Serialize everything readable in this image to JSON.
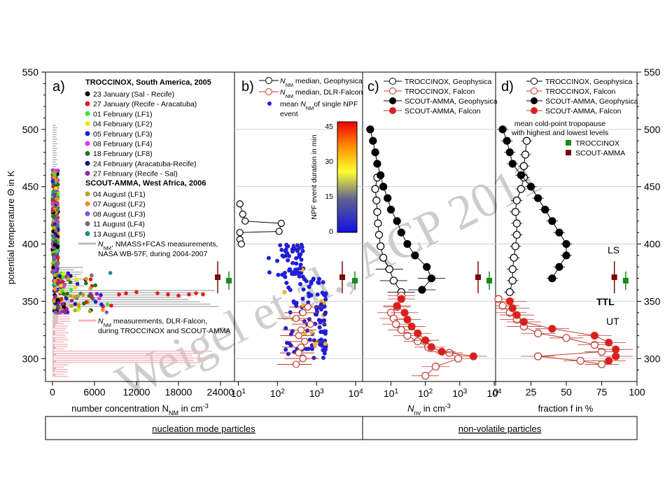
{
  "watermark": "Weigel et al., ACP 2011",
  "y_axis": {
    "label": "potential temperature Θ in K",
    "range": [
      280,
      550
    ],
    "ticks": [
      300,
      350,
      400,
      450,
      500,
      550
    ]
  },
  "footer": {
    "left": "nucleation mode particles",
    "right": "non-volatile particles"
  },
  "panels": {
    "a": {
      "letter": "a)",
      "xlabel": "number concentration  N",
      "xlabel_sub": "NM",
      "xlabel_unit": "in cm",
      "xlabel_sup": "-3",
      "xticks": [
        "0",
        "6000",
        "12000",
        "18000",
        "24000"
      ],
      "xrange": [
        -1000,
        26000
      ],
      "group1_title": "TROCCINOX, South America, 2005",
      "group1": [
        {
          "label": "23 January (Sal - Recife)",
          "color": "#000000"
        },
        {
          "label": "27 January (Recife - Aracatuba)",
          "color": "#e41a1c"
        },
        {
          "label": "01 February (LF1)",
          "color": "#39e639"
        },
        {
          "label": "04 February (LF2)",
          "color": "#e8e800"
        },
        {
          "label": "05 February (LF3)",
          "color": "#1f1fd6"
        },
        {
          "label": "08 February (LF4)",
          "color": "#e633e6"
        },
        {
          "label": "18 February (LF8)",
          "color": "#1a7a1a"
        },
        {
          "label": "24 February (Aracatuba-Recife)",
          "color": "#14147a"
        },
        {
          "label": "27 February (Recife - Sal)",
          "color": "#9b1fb0"
        }
      ],
      "group2_title": "SCOUT-AMMA, West Africa, 2006",
      "group2": [
        {
          "label": "04 August (LF1)",
          "color": "#b5a820"
        },
        {
          "label": "07 August (LF2)",
          "color": "#f08c1a"
        },
        {
          "label": "08 August (LF3)",
          "color": "#8a4fd6"
        },
        {
          "label": "11 August (LF4)",
          "color": "#6e6e6e"
        },
        {
          "label": "13 August (LF5)",
          "color": "#178a8a"
        }
      ],
      "nmass_line1": "N",
      "nmass_line1_sub": "NM",
      "nmass_line1_rest": ", NMASS+FCAS measurements,",
      "nmass_line2": "NASA WB-57F, during 2004-2007",
      "falcon_line1": "N",
      "falcon_line1_sub": "NM",
      "falcon_line1_rest": " measurements, DLR-Falcon,",
      "falcon_line2": "during TROCCINOX and SCOUT-AMMA",
      "gray_hist_color": "#bdbdbd",
      "pink_hist_color": "#f7b6bb"
    },
    "b": {
      "letter": "b)",
      "xticks": [
        "10",
        "10",
        "10",
        "10"
      ],
      "xtick_sups": [
        "1",
        "2",
        "3",
        "4"
      ],
      "legend": {
        "geo_n": "N",
        "geo_sub": "NM",
        "geo_rest": " median, Geophysica",
        "fal_n": "N",
        "fal_sub": "NM",
        "fal_rest": " median, DLR-Falcon",
        "mean_1": "mean ",
        "mean_n": "N",
        "mean_sub": "NM",
        "mean_2": "of single NPF",
        "mean_3": "event"
      },
      "colorbar": {
        "label": "NPF event duration in min",
        "ticks": [
          "0",
          "15",
          "30",
          "45"
        ]
      }
    },
    "c": {
      "letter": "c)",
      "xlabel_n": "N",
      "xlabel_sub": "nv",
      "xlabel_rest": " in cm",
      "xlabel_sup": "-3",
      "xticks": [
        "10",
        "10",
        "10",
        "10"
      ],
      "xtick_sups": [
        "1",
        "2",
        "3",
        "4"
      ],
      "legend": [
        "TROCCINOX, Geophysica",
        "TROCCINOX, Falcon",
        "SCOUT-AMMA, Geophysica",
        "SCOUT-AMMA, Falcon"
      ]
    },
    "d": {
      "letter": "d)",
      "xlabel": "fraction f in %",
      "xticks": [
        "0",
        "25",
        "50",
        "75",
        "100"
      ],
      "legend": [
        "TROCCINOX, Geophysica",
        "TROCCINOX, Falcon",
        "SCOUT-AMMA, Geophysica",
        "SCOUT-AMMA, Falcon"
      ],
      "tropo_line1": "mean cold-point tropopause",
      "tropo_line2": "with highest and lowest levels",
      "tropo_items": [
        {
          "label": "TROCCINOX",
          "color": "#1a8a1a"
        },
        {
          "label": "SCOUT-AMMA",
          "color": "#7a0a0a"
        }
      ],
      "region_labels": [
        "LS",
        "TTL",
        "UT"
      ]
    }
  },
  "chart_data": [
    {
      "type": "scatter",
      "panel": "b",
      "title": "",
      "xlabel": "",
      "ylabel": "potential temperature Θ in K",
      "xscale": "log",
      "xlim": [
        8,
        15000
      ],
      "ylim": [
        280,
        550
      ],
      "series": [
        {
          "name": "N median, Geophysica",
          "points": [
            [
              11,
              435
            ],
            [
              13,
              426
            ],
            [
              15,
              420
            ],
            [
              125,
              418
            ],
            [
              110,
              411
            ],
            [
              11,
              410
            ],
            [
              11,
              404
            ],
            [
              12,
              400
            ]
          ]
        },
        {
          "name": "N median, DLR-Falcon",
          "points": [
            [
              600,
              345
            ],
            [
              450,
              340
            ],
            [
              300,
              335
            ],
            [
              700,
              330
            ],
            [
              400,
              325
            ],
            [
              350,
              320
            ],
            [
              500,
              315
            ],
            [
              400,
              310
            ],
            [
              350,
              305
            ],
            [
              450,
              300
            ],
            [
              300,
              295
            ]
          ]
        }
      ]
    },
    {
      "type": "line",
      "panel": "c",
      "title": "",
      "xlabel": "",
      "ylabel": "potential temperature Θ in K",
      "xscale": "log",
      "xlim": [
        1.5,
        11000
      ],
      "ylim": [
        280,
        550
      ],
      "series": [
        {
          "name": "TROCCINOX, Geophysica",
          "points": [
            [
              20,
              358
            ],
            [
              12,
              368
            ],
            [
              9,
              378
            ],
            [
              6,
              388
            ],
            [
              5,
              398
            ],
            [
              4.5,
              408
            ],
            [
              4.2,
              418
            ],
            [
              4,
              428
            ],
            [
              3.8,
              438
            ],
            [
              3.5,
              448
            ],
            [
              4,
              458
            ]
          ]
        },
        {
          "name": "TROCCINOX, Falcon",
          "points": [
            [
              20,
              355
            ],
            [
              15,
              345
            ],
            [
              10,
              340
            ],
            [
              12,
              335
            ],
            [
              14,
              330
            ],
            [
              20,
              325
            ],
            [
              30,
              320
            ],
            [
              60,
              315
            ],
            [
              120,
              310
            ],
            [
              500,
              305
            ],
            [
              900,
              300
            ],
            [
              200,
              293
            ],
            [
              100,
              285
            ]
          ]
        },
        {
          "name": "SCOUT-AMMA, Geophysica",
          "points": [
            [
              2.5,
              500
            ],
            [
              3,
              490
            ],
            [
              3.5,
              480
            ],
            [
              4,
              470
            ],
            [
              5,
              460
            ],
            [
              6,
              450
            ],
            [
              8,
              440
            ],
            [
              10,
              430
            ],
            [
              15,
              420
            ],
            [
              20,
              410
            ],
            [
              30,
              400
            ],
            [
              50,
              390
            ],
            [
              110,
              380
            ],
            [
              150,
              370
            ],
            [
              80,
              360
            ]
          ]
        },
        {
          "name": "SCOUT-AMMA, Falcon",
          "points": [
            [
              20,
              352
            ],
            [
              15,
              346
            ],
            [
              25,
              340
            ],
            [
              30,
              334
            ],
            [
              40,
              328
            ],
            [
              60,
              322
            ],
            [
              100,
              316
            ],
            [
              150,
              310
            ],
            [
              300,
              306
            ],
            [
              2500,
              302
            ]
          ]
        }
      ]
    },
    {
      "type": "line",
      "panel": "d",
      "title": "",
      "xlabel": "fraction f in %",
      "ylabel": "potential temperature Θ in K",
      "xlim": [
        0,
        100
      ],
      "ylim": [
        280,
        550
      ],
      "series": [
        {
          "name": "TROCCINOX, Geophysica",
          "points": [
            [
              10,
              358
            ],
            [
              12,
              368
            ],
            [
              12,
              378
            ],
            [
              13,
              388
            ],
            [
              14,
              398
            ],
            [
              15,
              408
            ],
            [
              15,
              418
            ],
            [
              14,
              428
            ],
            [
              15,
              438
            ],
            [
              18,
              448
            ],
            [
              20,
              458
            ],
            [
              20,
              468
            ],
            [
              21,
              478
            ],
            [
              22,
              490
            ]
          ]
        },
        {
          "name": "TROCCINOX, Falcon",
          "points": [
            [
              2,
              352
            ],
            [
              5,
              346
            ],
            [
              10,
              340
            ],
            [
              15,
              334
            ],
            [
              20,
              328
            ],
            [
              30,
              322
            ],
            [
              50,
              318
            ],
            [
              70,
              312
            ],
            [
              75,
              306
            ],
            [
              30,
              302
            ],
            [
              60,
              298
            ],
            [
              75,
              295
            ]
          ]
        },
        {
          "name": "SCOUT-AMMA, Geophysica",
          "points": [
            [
              5,
              500
            ],
            [
              8,
              490
            ],
            [
              10,
              480
            ],
            [
              12,
              470
            ],
            [
              18,
              460
            ],
            [
              25,
              450
            ],
            [
              30,
              440
            ],
            [
              35,
              430
            ],
            [
              40,
              420
            ],
            [
              45,
              410
            ],
            [
              50,
              400
            ],
            [
              50,
              390
            ],
            [
              45,
              380
            ],
            [
              40,
              370
            ]
          ]
        },
        {
          "name": "SCOUT-AMMA, Falcon",
          "points": [
            [
              10,
              350
            ],
            [
              12,
              344
            ],
            [
              15,
              338
            ],
            [
              20,
              332
            ],
            [
              40,
              326
            ],
            [
              70,
              320
            ],
            [
              80,
              314
            ],
            [
              85,
              308
            ],
            [
              85,
              302
            ],
            [
              80,
              298
            ]
          ]
        }
      ]
    }
  ]
}
